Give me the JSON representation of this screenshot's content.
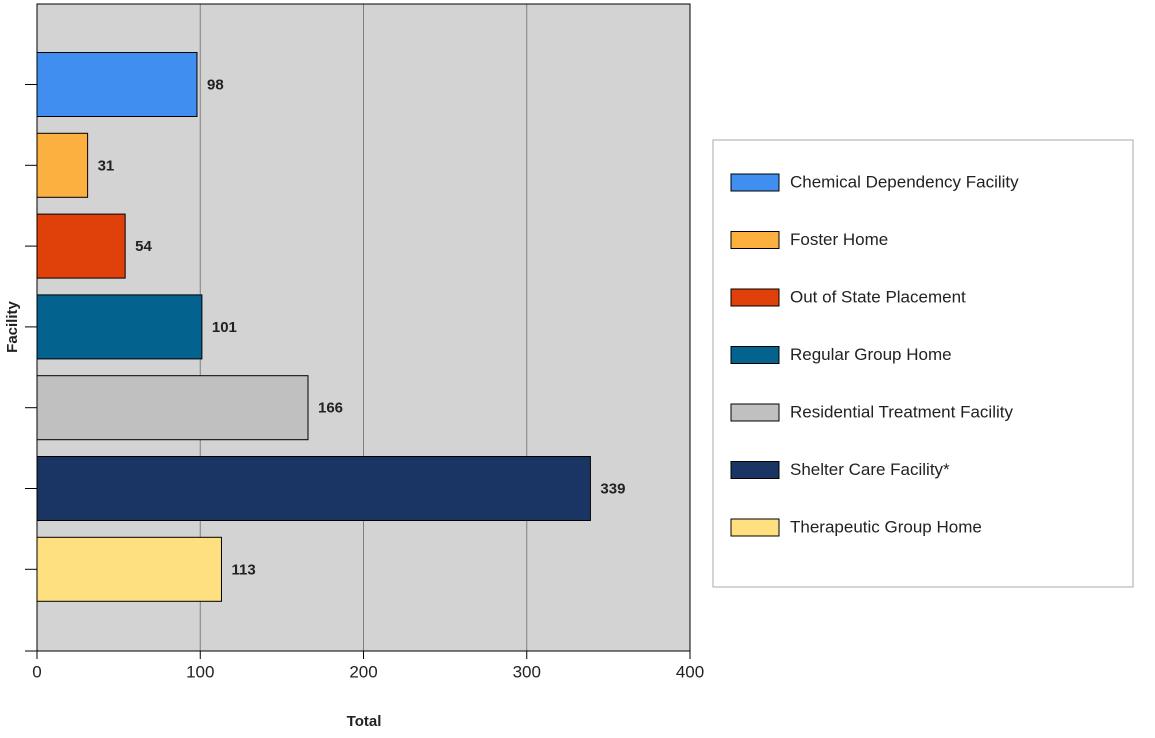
{
  "chart_data": {
    "type": "bar",
    "orientation": "horizontal",
    "x_label": "Total",
    "y_label": "Facility",
    "categories": [
      "Chemical Dependency Facility",
      "Foster Home",
      "Out of State Placement",
      "Regular Group Home",
      "Residential Treatment Facility",
      "Shelter Care Facility*",
      "Therapeutic Group Home"
    ],
    "values": [
      98,
      31,
      54,
      101,
      166,
      339,
      113
    ],
    "colors": [
      "#3f8ef0",
      "#fbb040",
      "#e0400a",
      "#03628e",
      "#c0c0c0",
      "#1a3563",
      "#ffe080"
    ],
    "xlim": [
      0,
      400
    ],
    "xticks": [
      0,
      100,
      200,
      300,
      400
    ],
    "grid": true,
    "legend": "right"
  }
}
